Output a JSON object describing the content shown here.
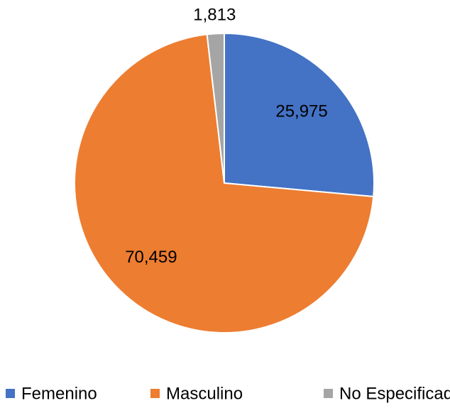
{
  "chart_data": {
    "type": "pie",
    "categories": [
      "Femenino",
      "Masculino",
      "No Especificado"
    ],
    "values": [
      25975,
      70459,
      1813
    ],
    "value_labels": [
      "25,975",
      "70,459",
      "1,813"
    ],
    "colors": [
      "#4472c4",
      "#ed7d31",
      "#a5a5a5"
    ],
    "legend": "bottom"
  }
}
